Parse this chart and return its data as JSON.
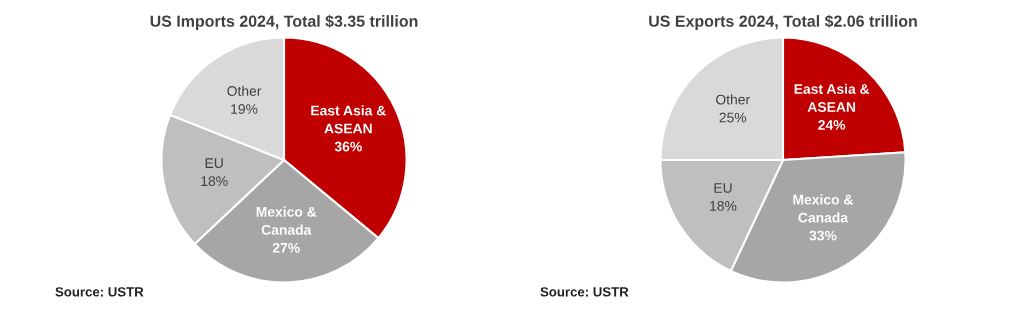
{
  "chart_data": [
    {
      "type": "pie",
      "title": "US Imports 2024, Total $3.35 trillion",
      "categories": [
        "East Asia &\nASEAN",
        "Mexico &\nCanada",
        "EU",
        "Other"
      ],
      "values": [
        36,
        27,
        18,
        19
      ],
      "value_labels": [
        "36%",
        "27%",
        "18%",
        "19%"
      ],
      "colors": [
        "#c00000",
        "#a6a6a6",
        "#bfbfbf",
        "#d9d9d9"
      ],
      "annotations": [
        "Source: USTR"
      ]
    },
    {
      "type": "pie",
      "title": "US Exports 2024, Total $2.06 trillion",
      "categories": [
        "East Asia &\nASEAN",
        "Mexico &\nCanada",
        "EU",
        "Other"
      ],
      "values": [
        24,
        33,
        18,
        25
      ],
      "value_labels": [
        "24%",
        "33%",
        "18%",
        "25%"
      ],
      "colors": [
        "#c00000",
        "#a6a6a6",
        "#bfbfbf",
        "#d9d9d9"
      ],
      "annotations": [
        "Source: USTR"
      ]
    }
  ]
}
